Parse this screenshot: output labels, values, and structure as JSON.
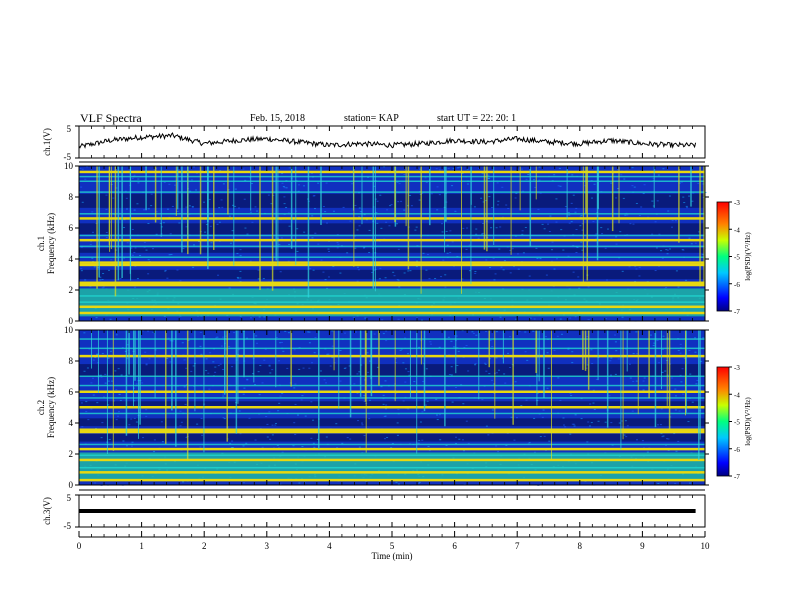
{
  "header": {
    "title": "VLF Spectra",
    "date": "Feb. 15, 2018",
    "station": "station= KAP",
    "start": "start UT = 22: 20: 1"
  },
  "colors": {
    "spectrogram_bg": "#1030c0",
    "band_yellow": "#e8d810",
    "band_cyan": "#20d8d0",
    "trace": "#000000"
  },
  "chart_data": [
    {
      "type": "line",
      "panel": "ch1-waveform",
      "ylabel": "ch.1(V)",
      "ylim": [
        -5,
        5
      ],
      "yticks": [
        5,
        -5
      ],
      "xlim": [
        0,
        10
      ],
      "series": [
        {
          "x": [
            0,
            0.5,
            1,
            1.5,
            2,
            2.5,
            3,
            3.5,
            4,
            4.5,
            5,
            5.5,
            6,
            6.5,
            7,
            7.5,
            8,
            8.5,
            9,
            9.5,
            9.85
          ],
          "values": [
            -1.5,
            0.5,
            1.5,
            2.0,
            -0.5,
            0.5,
            1.0,
            0.0,
            -1.0,
            -0.5,
            -1.0,
            -0.5,
            0.5,
            0.0,
            1.0,
            0.0,
            -0.5,
            0.5,
            -0.5,
            -1.0,
            -1.0
          ]
        }
      ]
    },
    {
      "type": "heatmap",
      "panel": "ch1-spectrogram",
      "ylabel": "ch.1 Frequency (kHz)",
      "ylim": [
        0,
        10
      ],
      "yticks": [
        0,
        2,
        4,
        6,
        8,
        10
      ],
      "xlim": [
        0,
        10
      ],
      "colorbar": {
        "label": "log(PSD)(V²/Hz)",
        "range": [
          -7,
          -3
        ],
        "ticks": [
          -3,
          -4,
          -5,
          -6,
          -7
        ]
      }
    },
    {
      "type": "heatmap",
      "panel": "ch2-spectrogram",
      "ylabel": "ch.2 Frequency (kHz)",
      "ylim": [
        0,
        10
      ],
      "yticks": [
        0,
        2,
        4,
        6,
        8,
        10
      ],
      "xlim": [
        0,
        10
      ],
      "colorbar": {
        "label": "log(PSD)(V²/Hz)",
        "range": [
          -7,
          -3
        ],
        "ticks": [
          -3,
          -4,
          -5,
          -6,
          -7
        ]
      }
    },
    {
      "type": "line",
      "panel": "ch3-waveform",
      "ylabel": "ch.3(V)",
      "ylim": [
        -5,
        5
      ],
      "yticks": [
        5,
        -5
      ],
      "xlim": [
        0,
        10
      ],
      "series": [
        {
          "x": [
            0,
            9.85
          ],
          "values": [
            0,
            0
          ]
        }
      ]
    }
  ],
  "xaxis": {
    "label": "Time (min)",
    "ticks": [
      "0",
      "1",
      "2",
      "3",
      "4",
      "5",
      "6",
      "7",
      "8",
      "9",
      "10"
    ]
  }
}
